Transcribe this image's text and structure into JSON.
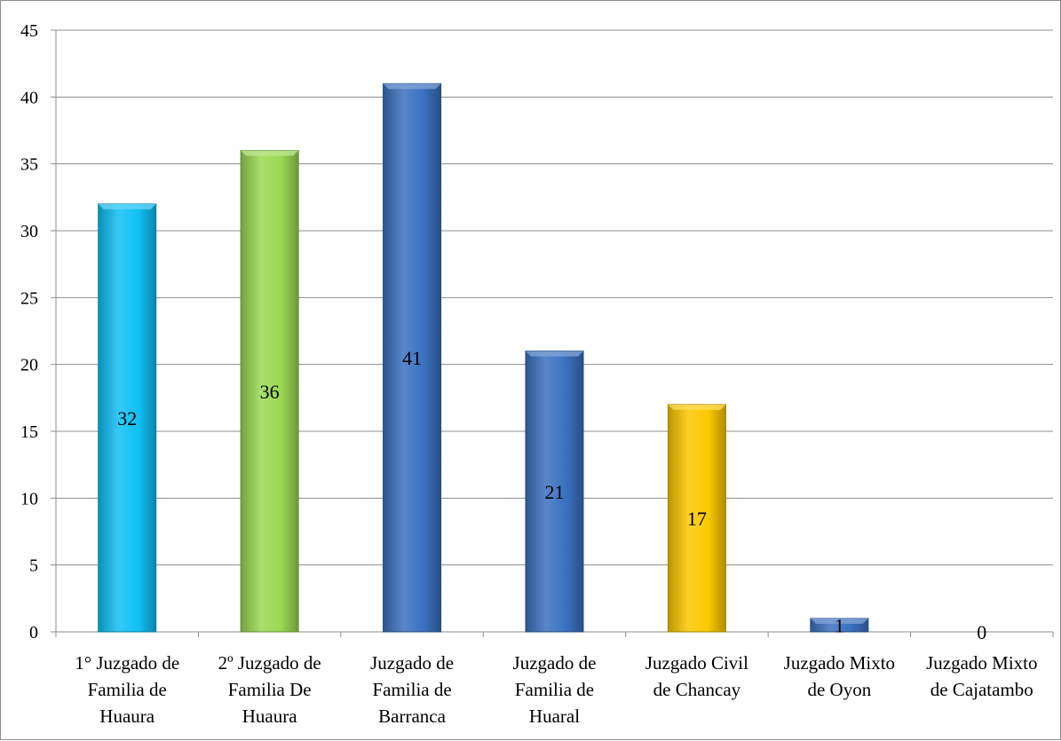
{
  "chart_data": {
    "type": "bar",
    "categories": [
      [
        "1° Juzgado de",
        "Familia de",
        "Huaura"
      ],
      [
        "2º Juzgado de",
        "Familia De",
        "Huaura"
      ],
      [
        "Juzgado de",
        "Familia de",
        "Barranca"
      ],
      [
        "Juzgado de",
        "Familia de",
        "Huaral"
      ],
      [
        "Juzgado Civil",
        "de Chancay"
      ],
      [
        "Juzgado Mixto",
        "de Oyon"
      ],
      [
        "Juzgado Mixto",
        "de Cajatambo"
      ]
    ],
    "values": [
      32,
      36,
      41,
      21,
      17,
      1,
      0
    ],
    "data_labels": [
      "32",
      "36",
      "41",
      "21",
      "17",
      "1",
      "0"
    ],
    "colors": [
      "#10c0f4",
      "#9ad953",
      "#3a71c0",
      "#3a71c0",
      "#fbc800",
      "#3a71c0",
      "#3a71c0"
    ],
    "ylim": [
      0,
      45
    ],
    "yticks": [
      0,
      5,
      10,
      15,
      20,
      25,
      30,
      35,
      40,
      45
    ],
    "grid": true,
    "legend": "none",
    "title": "",
    "xlabel": "",
    "ylabel": ""
  }
}
